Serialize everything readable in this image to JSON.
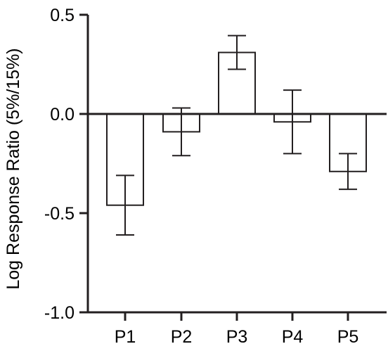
{
  "chart_data": {
    "type": "bar",
    "title": "",
    "xlabel": "",
    "ylabel": "Log Response Ratio (5%/15%)",
    "ylim": [
      -1.0,
      0.5
    ],
    "yticks": [
      0.5,
      0.0,
      -0.5,
      -1.0
    ],
    "ytick_labels": [
      "0.5",
      "0.0",
      "-0.5",
      "-1.0"
    ],
    "categories": [
      "P1",
      "P2",
      "P3",
      "P4",
      "P5"
    ],
    "values": [
      -0.46,
      -0.09,
      0.31,
      -0.04,
      -0.29
    ],
    "error": [
      0.15,
      0.12,
      0.085,
      0.16,
      0.09
    ],
    "bar_fill": "#ffffff",
    "bar_stroke": "#231f20",
    "axis_color": "#231f20",
    "grid": false
  }
}
